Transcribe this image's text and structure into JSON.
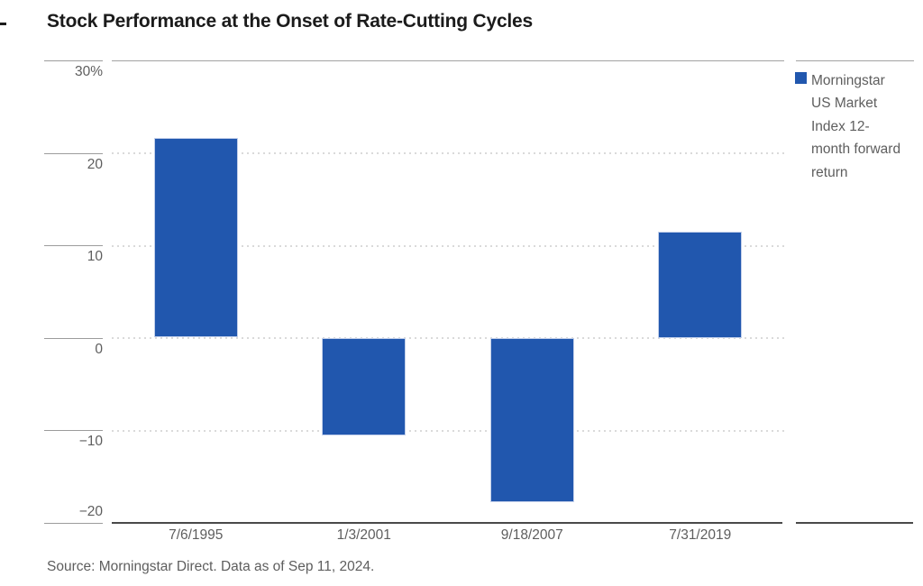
{
  "page": {
    "title": "Stock Performance at the Onset of Rate-Cutting Cycles",
    "source": "Source: Morningstar Direct. Data as of Sep 11, 2024."
  },
  "legend": {
    "label": "Morningstar US Market Index 12-month forward return",
    "lines": [
      "Morningstar",
      "US Market",
      "Index 12-",
      "month forward",
      "return"
    ],
    "swatch_color": "#2157ae"
  },
  "chart_data": {
    "type": "bar",
    "title": "Stock Performance at the Onset of Rate-Cutting Cycles",
    "series_name": "Morningstar US Market Index 12-month forward return",
    "categories": [
      "7/6/1995",
      "1/3/2001",
      "9/18/2007",
      "7/31/2019"
    ],
    "values": [
      21.6,
      -10.6,
      -17.8,
      11.5
    ],
    "unit": "percent",
    "ylim": [
      -20,
      30
    ],
    "yticks": {
      "values": [
        30,
        20,
        10,
        0,
        -10,
        -20
      ],
      "labels": [
        "30%",
        "20",
        "10",
        "0",
        "−10",
        "−20"
      ]
    },
    "gridline_values": [
      20,
      10,
      0,
      -10
    ],
    "bar_color": "#2157ae",
    "grid": "dotted-horizontal",
    "legend_position": "right"
  }
}
